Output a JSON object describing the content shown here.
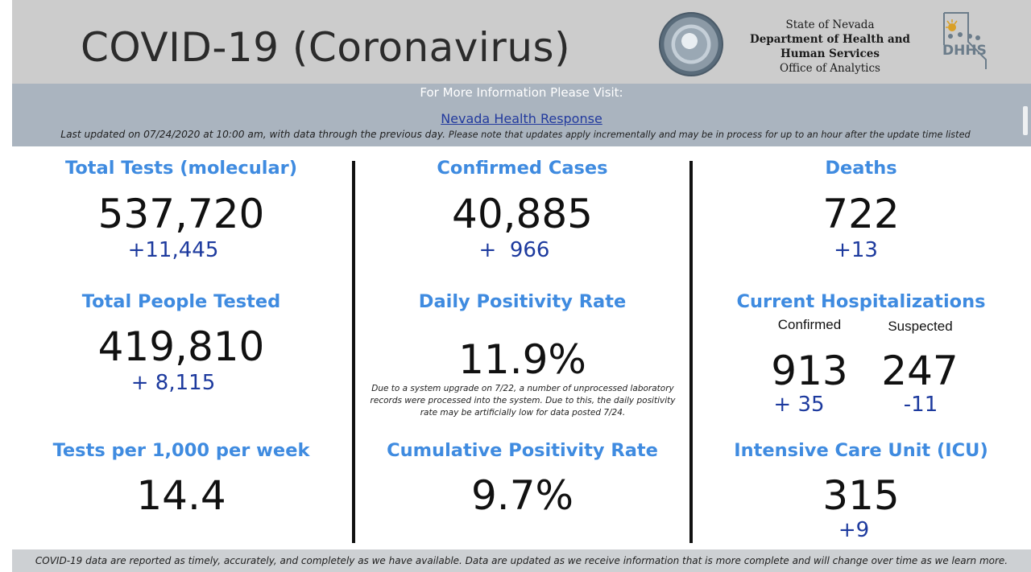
{
  "header": {
    "title": "COVID-19 (Coronavirus)",
    "org_line1": "State of Nevada",
    "org_line2": "Department of Health and",
    "org_line3": "Human Services",
    "org_line4": "Office of Analytics",
    "seal_icon": "nevada-state-seal-icon",
    "logo_icon": "dhhs-logo-icon"
  },
  "info": {
    "visit_label": "For More Information Please Visit:",
    "link_label": "Nevada Health Response",
    "updated_text": "Last updated on 07/24/2020 at 10:00 am, with data through the previous day.",
    "updated_note": "Please note that updates apply incrementally and may be in process for up to an hour after the update time listed"
  },
  "stats": {
    "total_tests": {
      "title": "Total Tests (molecular)",
      "value": "537,720",
      "delta": "+11,445"
    },
    "confirmed_cases": {
      "title": "Confirmed Cases",
      "value": "40,885",
      "delta": "+  966"
    },
    "deaths": {
      "title": "Deaths",
      "value": "722",
      "delta": "+13"
    },
    "total_people_tested": {
      "title": "Total People Tested",
      "value": "419,810",
      "delta": "+ 8,115"
    },
    "daily_positivity": {
      "title": "Daily Positivity Rate",
      "value": "11.9%",
      "note": "Due to a system upgrade on 7/22, a number of unprocessed laboratory records were processed into the system.  Due to this, the daily positivity rate may be artificially low for data posted 7/24."
    },
    "hospitalizations": {
      "title": "Current Hospitalizations",
      "confirmed_label": "Confirmed",
      "suspected_label": "Suspected",
      "confirmed_value": "913",
      "suspected_value": "247",
      "confirmed_delta": "+ 35",
      "suspected_delta": "-11"
    },
    "tests_per_1000": {
      "title": "Tests per 1,000 per week",
      "value": "14.4"
    },
    "cumulative_positivity": {
      "title": "Cumulative Positivity Rate",
      "value": "9.7%"
    },
    "icu": {
      "title": "Intensive Care Unit (ICU)",
      "value": "315",
      "delta": "+9"
    }
  },
  "footer": {
    "text": "COVID-19 data are reported as timely, accurately, and completely as we have available.  Data are updated as we receive information that is more complete and will change over time as we learn more."
  },
  "colors": {
    "title_blue": "#3f8be0",
    "delta_blue": "#1d3a9e",
    "header_gray": "#cccccc",
    "band_gray": "#aab4bf"
  }
}
